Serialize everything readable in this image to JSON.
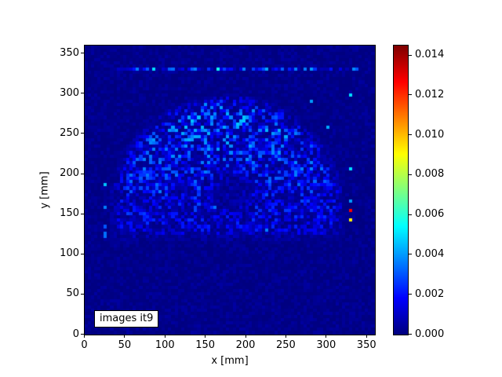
{
  "colors": {
    "figure_background": "#ffffff",
    "data_min_navy": "#000080",
    "spine": "#000000",
    "annotation_background": "#ffffff"
  },
  "chart_data": {
    "type": "heatmap",
    "title": "",
    "xlabel": "x [mm]",
    "ylabel": "y [mm]",
    "annotation": "images it9",
    "colormap": "jet",
    "x_range_mm": [
      0,
      360
    ],
    "y_range_mm": [
      0,
      360
    ],
    "x_ticks": [
      0,
      50,
      100,
      150,
      200,
      250,
      300,
      350
    ],
    "y_ticks": [
      0,
      50,
      100,
      150,
      200,
      250,
      300,
      350
    ],
    "vmin": 0.0,
    "vmax": 0.0145,
    "colorbar_ticks": [
      {
        "value": 0.0,
        "label": "0.000"
      },
      {
        "value": 0.002,
        "label": "0.002"
      },
      {
        "value": 0.004,
        "label": "0.004"
      },
      {
        "value": 0.006,
        "label": "0.006"
      },
      {
        "value": 0.008,
        "label": "0.008"
      },
      {
        "value": 0.01,
        "label": "0.010"
      },
      {
        "value": 0.012,
        "label": "0.012"
      },
      {
        "value": 0.014,
        "label": "0.014"
      }
    ],
    "grid": {
      "cell_mm": 4,
      "nx": 90,
      "ny": 90
    },
    "seed": 1337,
    "background_noise_max": 0.0005,
    "dome": {
      "center_mm": [
        177,
        149
      ],
      "radius_mm": 150,
      "clip_y_mm": 112,
      "rim_fade_mm": 22,
      "bottom_fade_mm": 18,
      "base_amp": 0.00085,
      "top_amp": 0.00135,
      "speckle_gain": 2.4
    },
    "void_region": {
      "center_mm": [
        183,
        178
      ],
      "radius_mm": 27,
      "attenuation": 0.35
    },
    "top_line": {
      "y_mm": 332,
      "x_start_mm": 40,
      "x_end_mm": 350,
      "gap_prob": 0.25,
      "min_val": 0.0006,
      "max_val": 0.0038,
      "spikes": [
        [
          85,
          0.005
        ],
        [
          165,
          0.0057
        ],
        [
          224,
          0.0042
        ],
        [
          283,
          0.004
        ],
        [
          334,
          0.0038
        ]
      ]
    },
    "left_column": {
      "x_mm": 27,
      "dots": [
        [
          186,
          0.0046
        ],
        [
          157,
          0.0036
        ],
        [
          136,
          0.003
        ],
        [
          125,
          0.0034
        ],
        [
          121,
          0.0034
        ]
      ]
    },
    "right_column": {
      "x_mm": 331,
      "dots": [
        [
          299,
          0.005
        ],
        [
          205,
          0.005
        ],
        [
          166,
          0.004
        ],
        [
          154,
          0.0128
        ],
        [
          142,
          0.0092
        ]
      ]
    },
    "bright_pixels": [
      [
        189,
        262,
        0.0046
      ],
      [
        149,
        287,
        0.0038
      ],
      [
        235,
        252,
        0.004
      ],
      [
        202,
        270,
        0.0038
      ],
      [
        260,
        200,
        0.0036
      ],
      [
        118,
        222,
        0.0038
      ],
      [
        303,
        260,
        0.0042
      ],
      [
        92,
        180,
        0.0036
      ],
      [
        224,
        132,
        0.0036
      ],
      [
        160,
        160,
        0.0034
      ],
      [
        281,
        289,
        0.004
      ],
      [
        132,
        246,
        0.0036
      ]
    ]
  }
}
